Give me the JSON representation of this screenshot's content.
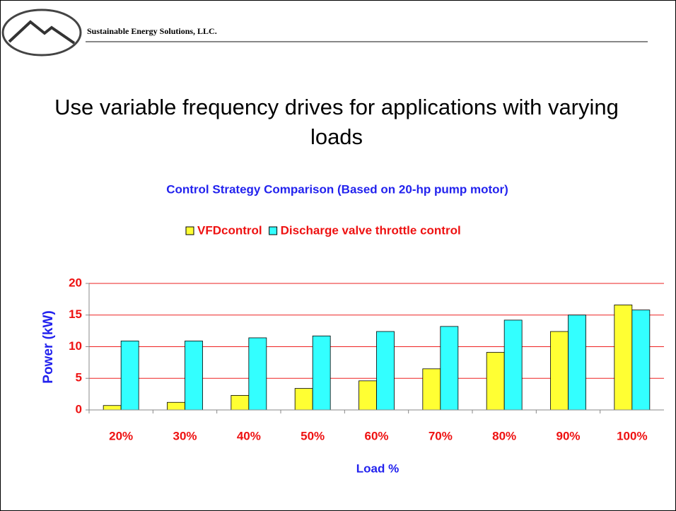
{
  "header": {
    "company": "Sustainable Energy Solutions, LLC."
  },
  "slide_title": "Use variable frequency drives for applications with varying loads",
  "chart_data": {
    "type": "bar",
    "title": "Control Strategy Comparison  (Based on 20-hp pump motor)",
    "x_label": "Load %",
    "y_label": "Power (kW)",
    "categories": [
      "20%",
      "30%",
      "40%",
      "50%",
      "60%",
      "70%",
      "80%",
      "90%",
      "100%"
    ],
    "series": [
      {
        "name": "VFDcontrol",
        "color": "#ffff33",
        "values": [
          0.7,
          1.2,
          2.3,
          3.4,
          4.6,
          6.5,
          9.1,
          12.4,
          16.6
        ]
      },
      {
        "name": "Discharge valve throttle control",
        "color": "#33ffff",
        "values": [
          10.9,
          10.9,
          11.4,
          11.7,
          12.4,
          13.2,
          14.2,
          15.0,
          15.8
        ]
      }
    ],
    "ylim": [
      0,
      20
    ],
    "yticks": [
      0,
      5,
      10,
      15,
      20
    ],
    "grid": true,
    "legend": "top"
  }
}
